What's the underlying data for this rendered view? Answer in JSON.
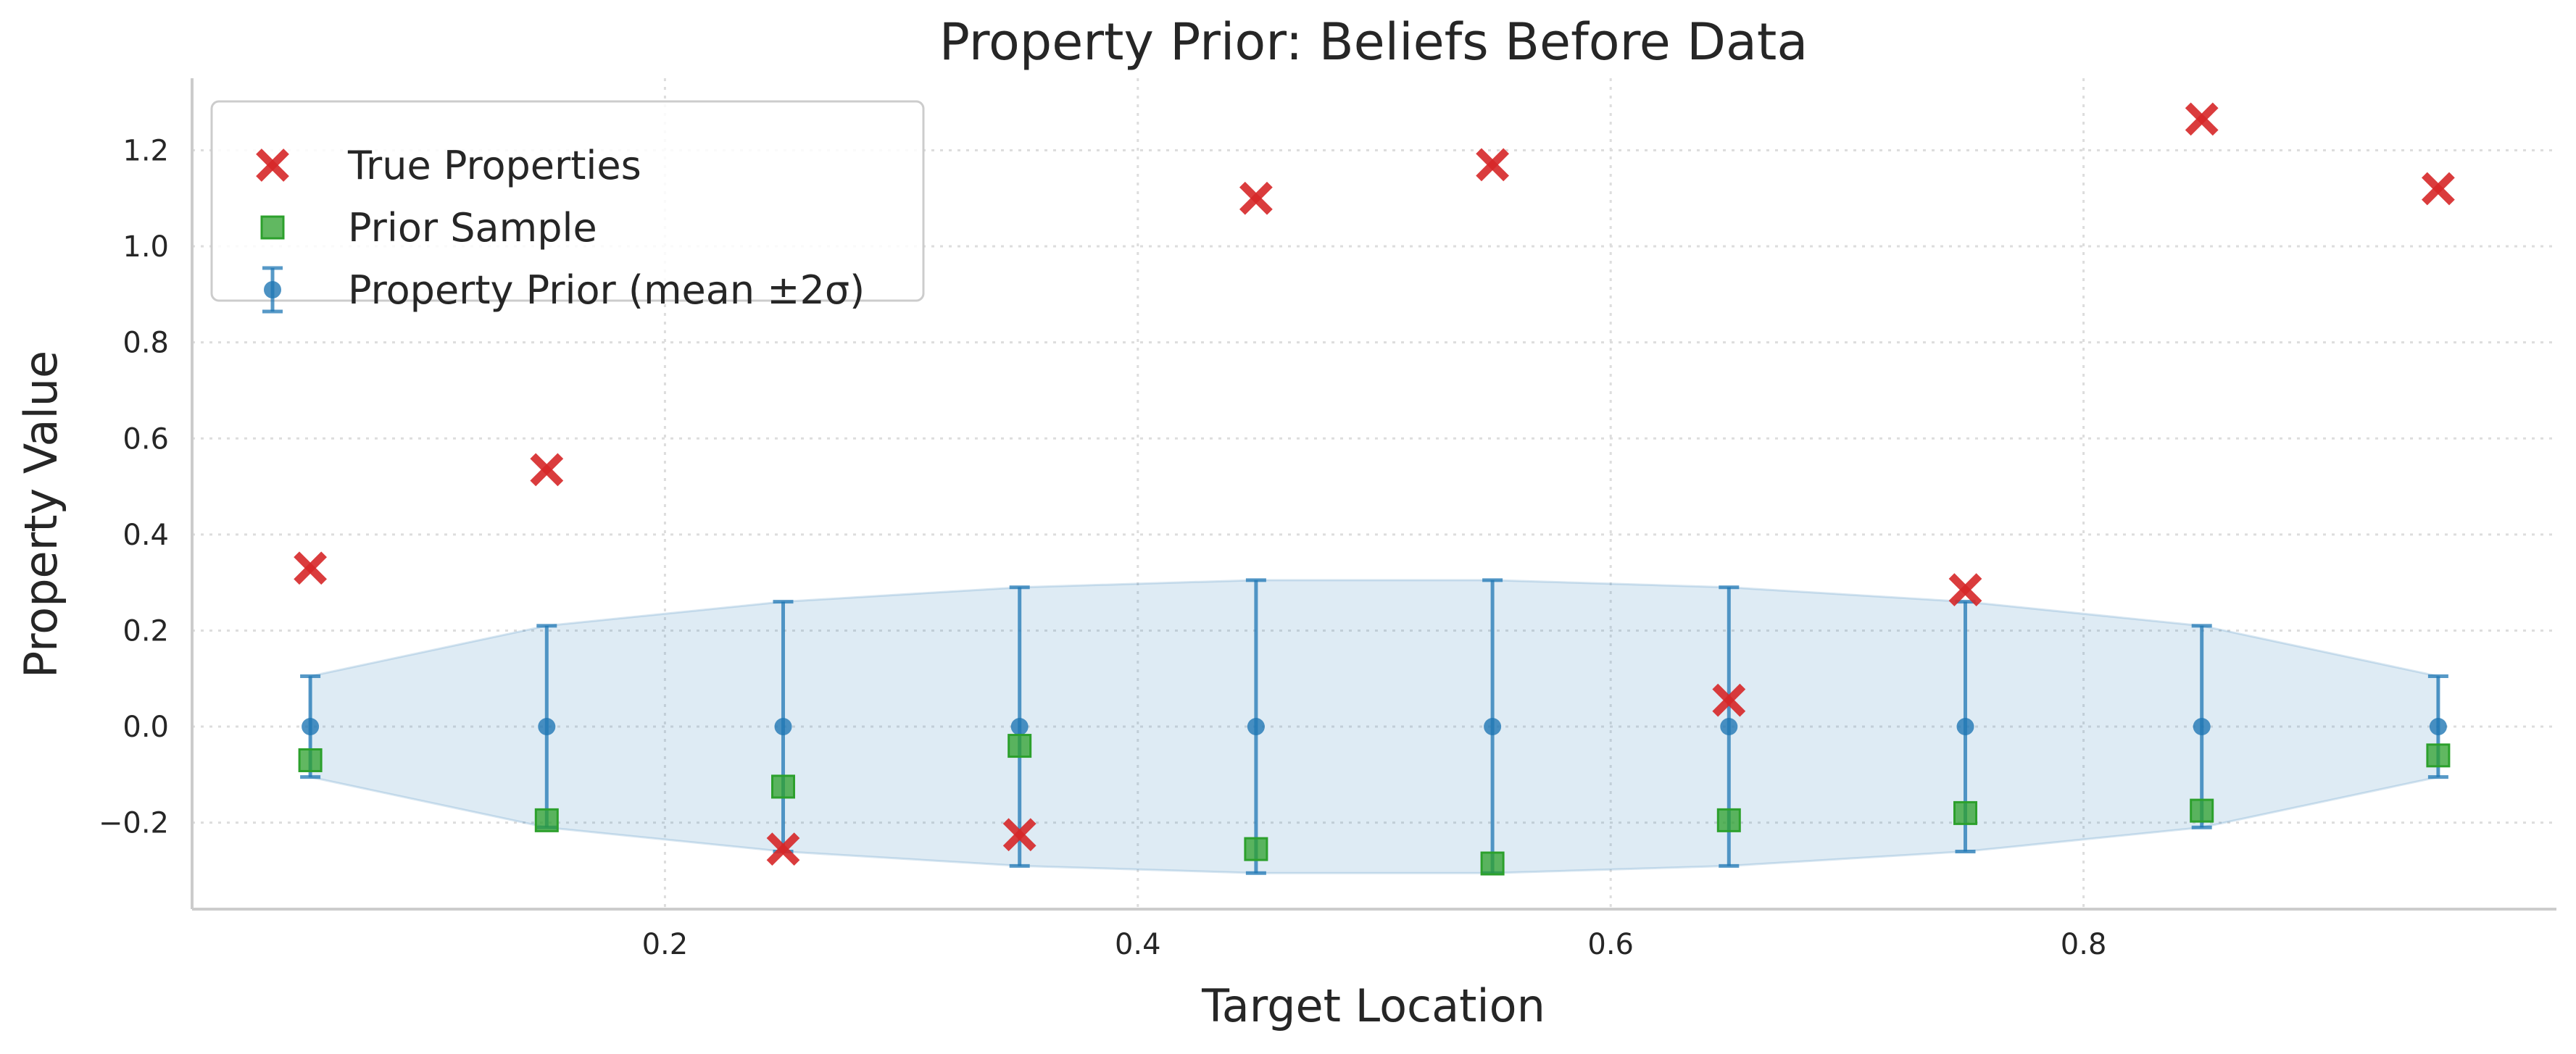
{
  "chart_data": {
    "type": "scatter",
    "title": "Property Prior: Beliefs Before Data",
    "xlabel": "Target Location",
    "ylabel": "Property Value",
    "xlim": [
      0.0,
      1.0
    ],
    "ylim": [
      -0.38,
      1.35
    ],
    "xticks": [
      0.2,
      0.4,
      0.6,
      0.8
    ],
    "xtick_labels": [
      "0.2",
      "0.4",
      "0.6",
      "0.8"
    ],
    "yticks": [
      -0.2,
      0.0,
      0.2,
      0.4,
      0.6,
      0.8,
      1.0,
      1.2
    ],
    "ytick_labels": [
      "−0.2",
      "0.0",
      "0.2",
      "0.4",
      "0.6",
      "0.8",
      "1.0",
      "1.2"
    ],
    "grid": true,
    "legend_position": "top-left",
    "x": [
      0.05,
      0.15,
      0.25,
      0.35,
      0.45,
      0.55,
      0.65,
      0.75,
      0.85,
      0.95
    ],
    "series": [
      {
        "name": "True Properties",
        "kind": "x-marker",
        "color": "#d62728",
        "values": [
          0.33,
          0.535,
          -0.255,
          -0.225,
          1.1,
          1.17,
          0.055,
          0.285,
          1.265,
          1.12
        ]
      },
      {
        "name": "Prior Sample",
        "kind": "square-marker",
        "color": "#2ca02c",
        "values": [
          -0.07,
          -0.195,
          -0.125,
          -0.04,
          -0.255,
          -0.285,
          -0.195,
          -0.18,
          -0.175,
          -0.06
        ]
      },
      {
        "name": "Property Prior (mean ±2σ)",
        "kind": "errorbar",
        "color": "#1f77b4",
        "values": [
          0,
          0,
          0,
          0,
          0,
          0,
          0,
          0,
          0,
          0
        ],
        "two_sigma": [
          0.105,
          0.21,
          0.26,
          0.29,
          0.305,
          0.305,
          0.29,
          0.26,
          0.21,
          0.105
        ]
      }
    ],
    "band_color": "#1f77b4"
  }
}
